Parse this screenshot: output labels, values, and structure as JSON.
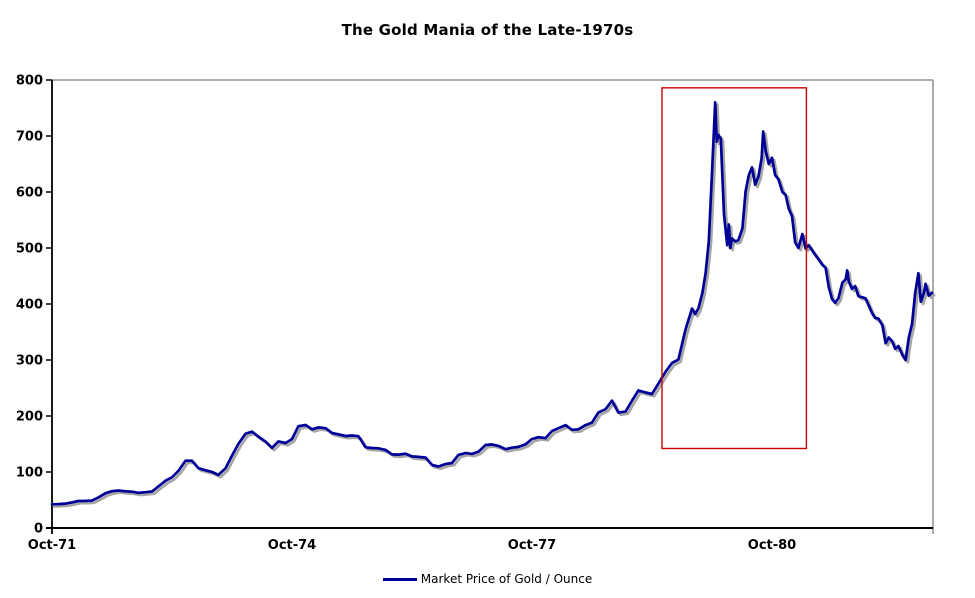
{
  "page": {
    "background_color": "#ffffff"
  },
  "chart_data": {
    "type": "line",
    "title": "The Gold Mania of the Late-1970s",
    "xlabel": "",
    "ylabel": "",
    "x_unit": "years since Oct-1971",
    "x_tick_labels": [
      "Oct-71",
      "Oct-74",
      "Oct-77",
      "Oct-80"
    ],
    "x_tick_positions_years": [
      0,
      3,
      6,
      9
    ],
    "x_range_years": [
      0,
      11.01
    ],
    "ylim": [
      0,
      800
    ],
    "y_ticks": [
      0,
      100,
      200,
      300,
      400,
      500,
      600,
      700,
      800
    ],
    "grid": false,
    "axis_color": "#000000",
    "border_color": "#808080",
    "legend": {
      "position": "bottom-center",
      "entries": [
        {
          "label": "Market Price of Gold / Ounce",
          "color": "#000099"
        }
      ]
    },
    "annotations": [
      {
        "type": "rect",
        "name": "gold-mania-highlight",
        "color": "#cc0000",
        "t0": 7.625,
        "t1": 9.43,
        "v0": 142,
        "v1": 786
      }
    ],
    "series": [
      {
        "name": "Market Price of Gold / Ounce",
        "color": "#000099",
        "shadow_color": "#a6a6a6",
        "points": [
          [
            0,
            42.5
          ],
          [
            0.08,
            42.6
          ],
          [
            0.17,
            43.5
          ],
          [
            0.25,
            45.8
          ],
          [
            0.33,
            48.3
          ],
          [
            0.42,
            48.4
          ],
          [
            0.5,
            49
          ],
          [
            0.58,
            54.6
          ],
          [
            0.67,
            62.1
          ],
          [
            0.75,
            65.7
          ],
          [
            0.83,
            67
          ],
          [
            0.92,
            65.5
          ],
          [
            1,
            64.9
          ],
          [
            1.08,
            62.9
          ],
          [
            1.17,
            63.9
          ],
          [
            1.25,
            65.1
          ],
          [
            1.33,
            74.2
          ],
          [
            1.42,
            84.4
          ],
          [
            1.5,
            90.5
          ],
          [
            1.58,
            102
          ],
          [
            1.67,
            120.1
          ],
          [
            1.75,
            120.2
          ],
          [
            1.83,
            106.8
          ],
          [
            1.92,
            103
          ],
          [
            2,
            100.1
          ],
          [
            2.08,
            94.8
          ],
          [
            2.17,
            106.7
          ],
          [
            2.25,
            129.2
          ],
          [
            2.33,
            150.2
          ],
          [
            2.42,
            168.4
          ],
          [
            2.5,
            172.2
          ],
          [
            2.58,
            163.3
          ],
          [
            2.67,
            154.1
          ],
          [
            2.75,
            143
          ],
          [
            2.83,
            154.6
          ],
          [
            2.92,
            151.8
          ],
          [
            3,
            158.8
          ],
          [
            3.08,
            181.7
          ],
          [
            3.17,
            183.9
          ],
          [
            3.25,
            176.3
          ],
          [
            3.33,
            179.7
          ],
          [
            3.42,
            178.2
          ],
          [
            3.5,
            169.7
          ],
          [
            3.58,
            167.4
          ],
          [
            3.67,
            164.3
          ],
          [
            3.75,
            165.1
          ],
          [
            3.83,
            163.9
          ],
          [
            3.92,
            144.1
          ],
          [
            4,
            142.9
          ],
          [
            4.08,
            142.4
          ],
          [
            4.17,
            139.3
          ],
          [
            4.25,
            131.5
          ],
          [
            4.33,
            131.1
          ],
          [
            4.42,
            132.6
          ],
          [
            4.5,
            127.9
          ],
          [
            4.58,
            126.9
          ],
          [
            4.67,
            125.7
          ],
          [
            4.75,
            112.5
          ],
          [
            4.83,
            109.9
          ],
          [
            4.92,
            114.2
          ],
          [
            5,
            116.1
          ],
          [
            5.08,
            130.5
          ],
          [
            5.17,
            133.9
          ],
          [
            5.25,
            132.3
          ],
          [
            5.33,
            136.3
          ],
          [
            5.42,
            148.2
          ],
          [
            5.5,
            149.2
          ],
          [
            5.58,
            146.6
          ],
          [
            5.67,
            140.8
          ],
          [
            5.75,
            143.4
          ],
          [
            5.83,
            144.9
          ],
          [
            5.92,
            149.5
          ],
          [
            6,
            158.9
          ],
          [
            6.08,
            162.1
          ],
          [
            6.17,
            160.5
          ],
          [
            6.25,
            173.2
          ],
          [
            6.33,
            178.2
          ],
          [
            6.42,
            183.7
          ],
          [
            6.5,
            175.3
          ],
          [
            6.58,
            176.3
          ],
          [
            6.67,
            183.7
          ],
          [
            6.75,
            188.2
          ],
          [
            6.83,
            206.3
          ],
          [
            6.92,
            212.1
          ],
          [
            7,
            227.4
          ],
          [
            7.08,
            206
          ],
          [
            7.17,
            207.8
          ],
          [
            7.25,
            227.3
          ],
          [
            7.33,
            245.7
          ],
          [
            7.42,
            242
          ],
          [
            7.5,
            239.2
          ],
          [
            7.58,
            257.6
          ],
          [
            7.67,
            279.1
          ],
          [
            7.75,
            294.7
          ],
          [
            7.83,
            300.8
          ],
          [
            7.92,
            355.1
          ],
          [
            8,
            391.7
          ],
          [
            8.04,
            382
          ],
          [
            8.08,
            392
          ],
          [
            8.13,
            420
          ],
          [
            8.17,
            455.1
          ],
          [
            8.21,
            512
          ],
          [
            8.25,
            634
          ],
          [
            8.29,
            760
          ],
          [
            8.31,
            690
          ],
          [
            8.33,
            702
          ],
          [
            8.36,
            695
          ],
          [
            8.4,
            560
          ],
          [
            8.44,
            505
          ],
          [
            8.46,
            542
          ],
          [
            8.48,
            500
          ],
          [
            8.5,
            517
          ],
          [
            8.54,
            512
          ],
          [
            8.58,
            514
          ],
          [
            8.63,
            535
          ],
          [
            8.67,
            601
          ],
          [
            8.71,
            630
          ],
          [
            8.75,
            644
          ],
          [
            8.79,
            613
          ],
          [
            8.83,
            627
          ],
          [
            8.87,
            660
          ],
          [
            8.89,
            708
          ],
          [
            8.92,
            674
          ],
          [
            8.96,
            650
          ],
          [
            9,
            661
          ],
          [
            9.04,
            630
          ],
          [
            9.08,
            623
          ],
          [
            9.13,
            600
          ],
          [
            9.17,
            595
          ],
          [
            9.21,
            570
          ],
          [
            9.25,
            557
          ],
          [
            9.29,
            510
          ],
          [
            9.33,
            500
          ],
          [
            9.38,
            525
          ],
          [
            9.42,
            499
          ],
          [
            9.46,
            505
          ],
          [
            9.5,
            496
          ],
          [
            9.54,
            488
          ],
          [
            9.58,
            480
          ],
          [
            9.63,
            470
          ],
          [
            9.67,
            465
          ],
          [
            9.71,
            430
          ],
          [
            9.75,
            409
          ],
          [
            9.79,
            402
          ],
          [
            9.83,
            410
          ],
          [
            9.88,
            438
          ],
          [
            9.92,
            444
          ],
          [
            9.94,
            460
          ],
          [
            9.96,
            440
          ],
          [
            10,
            427
          ],
          [
            10.04,
            432
          ],
          [
            10.08,
            414
          ],
          [
            10.13,
            412
          ],
          [
            10.17,
            410
          ],
          [
            10.25,
            384
          ],
          [
            10.29,
            375
          ],
          [
            10.33,
            374
          ],
          [
            10.38,
            362
          ],
          [
            10.42,
            330
          ],
          [
            10.46,
            340
          ],
          [
            10.5,
            334
          ],
          [
            10.54,
            320
          ],
          [
            10.58,
            325
          ],
          [
            10.63,
            309
          ],
          [
            10.67,
            300
          ],
          [
            10.71,
            340
          ],
          [
            10.75,
            364
          ],
          [
            10.79,
            420
          ],
          [
            10.83,
            455
          ],
          [
            10.86,
            404
          ],
          [
            10.9,
            420
          ],
          [
            10.92,
            436
          ],
          [
            10.96,
            415
          ],
          [
            11,
            420
          ]
        ]
      }
    ]
  }
}
